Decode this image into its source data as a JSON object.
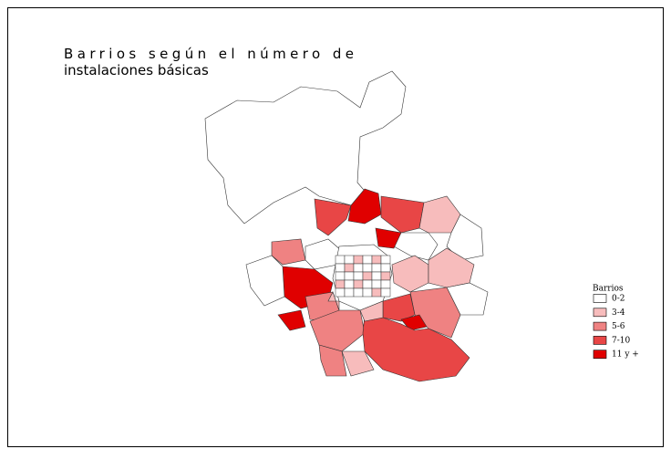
{
  "title_lines": [
    "Barrios según el número de",
    "instalaciones básicas"
  ],
  "legend": {
    "title": "Barrios",
    "items": [
      {
        "label": "0-2",
        "color": "#ffffff"
      },
      {
        "label": "3-4",
        "color": "#f7bcbc"
      },
      {
        "label": "5-6",
        "color": "#ef8282"
      },
      {
        "label": "7-10",
        "color": "#e84646"
      },
      {
        "label": "11 y +",
        "color": "#e00000"
      }
    ]
  }
}
